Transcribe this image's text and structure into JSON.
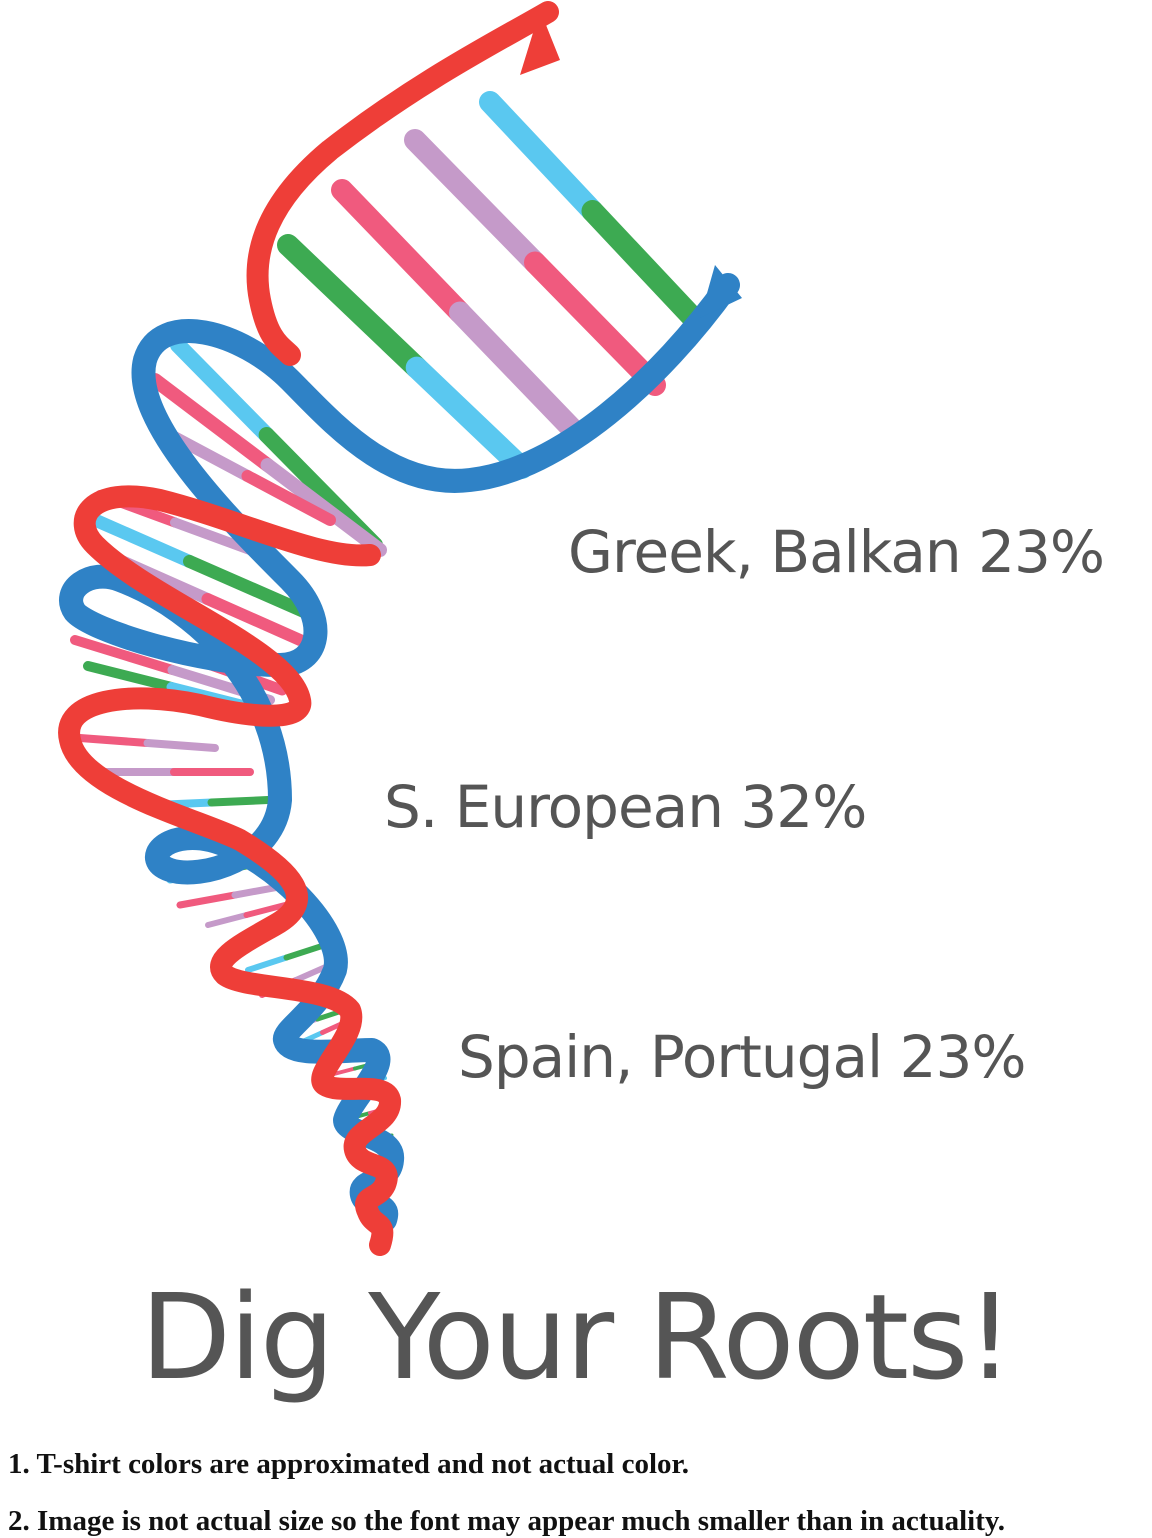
{
  "labels": {
    "greek_balkan": "Greek, Balkan 23%",
    "s_european": "S. European 32%",
    "spain_portugal": "Spain, Portugal 23%"
  },
  "headline": "Dig Your Roots!",
  "notes": [
    "1. T-shirt colors are approximated and not actual color.",
    "2. Image is not actual size so the font may appear much smaller than in actuality."
  ],
  "colors": {
    "strand_red": "#ee3e38",
    "strand_blue": "#2f82c6",
    "rung_cyan": "#5ac8f0",
    "rung_pink": "#f05a7e",
    "rung_purple": "#c59ac9",
    "rung_green": "#3daa52",
    "text_gray": "#555555"
  }
}
